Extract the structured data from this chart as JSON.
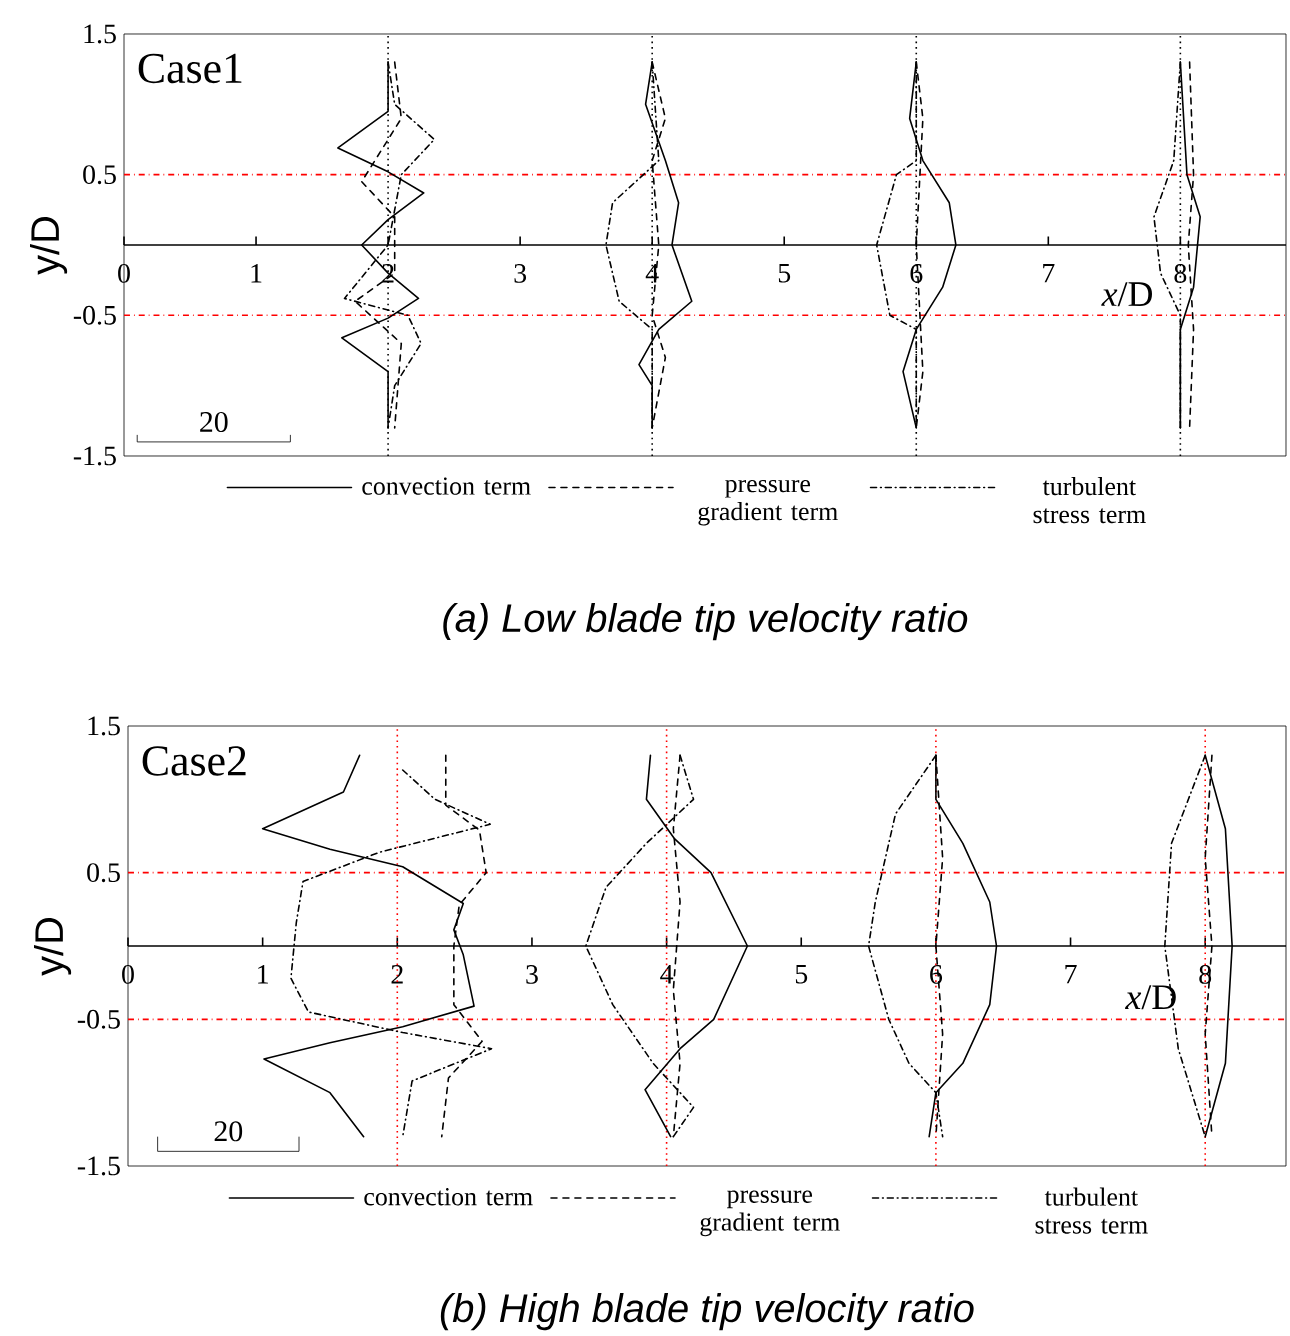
{
  "chart_data": [
    {
      "type": "line",
      "title": "(a) Low blade tip velocity ratio",
      "xlabel": "*x*/D",
      "ylabel": "y/D",
      "annotations": [
        "Case1",
        "20"
      ],
      "xlim": [
        0,
        8.8
      ],
      "ylim": [
        -1.5,
        1.5
      ],
      "xticks": [
        0,
        1,
        2,
        3,
        4,
        5,
        6,
        7,
        8
      ],
      "yticks": [
        -1.5,
        -0.5,
        0.5,
        1.5
      ],
      "legend": "bottom",
      "ref_lines": [
        {
          "axis": "y",
          "value": 0.5,
          "color": "#ff0000",
          "line_style": "dashdot"
        },
        {
          "axis": "y",
          "value": -0.5,
          "color": "#ff0000",
          "line_style": "dashdot"
        },
        {
          "axis": "x",
          "value": 2,
          "color": "#000000",
          "line_style": "dotted"
        },
        {
          "axis": "x",
          "value": 4,
          "color": "#000000",
          "line_style": "dotted"
        },
        {
          "axis": "x",
          "value": 6,
          "color": "#000000",
          "line_style": "dotted"
        },
        {
          "axis": "x",
          "value": 8,
          "color": "#000000",
          "line_style": "dotted"
        }
      ],
      "series": [
        {
          "name": "convection term",
          "color": "#000000",
          "line_style": "solid",
          "x": [
            2.0,
            2.0,
            1.62,
            2.0,
            2.27,
            2.0,
            1.8,
            2.0,
            2.23,
            2.0,
            1.65,
            2.0,
            2.0,
            null,
            4.0,
            3.95,
            4.1,
            4.2,
            4.15,
            4.3,
            4.05,
            3.9,
            4.0,
            4.0,
            null,
            6.0,
            5.95,
            6.05,
            6.25,
            6.3,
            6.2,
            6.0,
            5.9,
            6.0,
            null,
            8.0,
            8.05,
            8.15,
            8.1,
            8.0,
            8.0
          ],
          "values": [
            1.3,
            0.95,
            0.69,
            0.52,
            0.37,
            0.18,
            0.0,
            -0.2,
            -0.38,
            -0.52,
            -0.66,
            -0.9,
            -1.3,
            null,
            1.3,
            1.0,
            0.6,
            0.3,
            0.0,
            -0.4,
            -0.6,
            -0.85,
            -1.0,
            -1.3,
            null,
            1.3,
            0.9,
            0.6,
            0.3,
            0.0,
            -0.3,
            -0.6,
            -0.9,
            -1.3,
            null,
            1.3,
            0.5,
            0.2,
            -0.3,
            -0.6,
            -1.3
          ]
        },
        {
          "name": "pressure gradient term",
          "color": "#000000",
          "line_style": "dashed",
          "x": [
            2.05,
            2.1,
            1.8,
            2.05,
            2.05,
            1.75,
            2.1,
            2.05,
            null,
            4.0,
            4.1,
            4.0,
            4.05,
            4.0,
            4.1,
            4.0,
            null,
            6.0,
            6.05,
            6.0,
            6.05,
            6.0,
            null,
            8.07,
            8.1,
            8.06,
            8.1,
            8.07
          ],
          "values": [
            1.3,
            0.9,
            0.45,
            0.2,
            -0.2,
            -0.4,
            -0.7,
            -1.3,
            null,
            1.3,
            0.9,
            0.6,
            0.0,
            -0.5,
            -0.8,
            -1.3,
            null,
            1.3,
            0.9,
            0.0,
            -0.9,
            -1.3,
            null,
            1.3,
            0.5,
            0.0,
            -0.6,
            -1.3
          ]
        },
        {
          "name": "turbulent stress term",
          "color": "#000000",
          "line_style": "dashdot",
          "x": [
            2.0,
            2.05,
            2.35,
            2.1,
            2.0,
            1.67,
            2.15,
            2.25,
            2.05,
            2.0,
            null,
            4.0,
            4.05,
            3.7,
            3.65,
            3.75,
            4.0,
            4.0,
            null,
            6.0,
            6.0,
            5.85,
            5.7,
            5.8,
            6.0,
            6.0,
            null,
            8.0,
            7.95,
            7.8,
            7.85,
            8.0,
            8.0
          ],
          "values": [
            1.3,
            1.0,
            0.75,
            0.5,
            0.0,
            -0.38,
            -0.5,
            -0.7,
            -1.0,
            -1.3,
            null,
            1.3,
            0.6,
            0.3,
            0.0,
            -0.4,
            -0.6,
            -1.3,
            null,
            1.3,
            0.6,
            0.5,
            0.0,
            -0.5,
            -0.6,
            -1.3,
            null,
            1.3,
            0.6,
            0.2,
            -0.2,
            -0.5,
            -1.3
          ]
        }
      ]
    },
    {
      "type": "line",
      "title": "(b) High blade tip velocity ratio",
      "xlabel": "*x*/D",
      "ylabel": "y/D",
      "annotations": [
        "Case2",
        "20"
      ],
      "xlim": [
        0,
        8.6
      ],
      "ylim": [
        -1.5,
        1.5
      ],
      "xticks": [
        0,
        1,
        2,
        3,
        4,
        5,
        6,
        7,
        8
      ],
      "yticks": [
        -1.5,
        -0.5,
        0.5,
        1.5
      ],
      "legend": "bottom",
      "ref_lines": [
        {
          "axis": "y",
          "value": 0.5,
          "color": "#ff0000",
          "line_style": "dashdot"
        },
        {
          "axis": "y",
          "value": -0.5,
          "color": "#ff0000",
          "line_style": "dashdot"
        },
        {
          "axis": "x",
          "value": 2,
          "color": "#ff0000",
          "line_style": "dotted"
        },
        {
          "axis": "x",
          "value": 4,
          "color": "#ff0000",
          "line_style": "dotted"
        },
        {
          "axis": "x",
          "value": 6,
          "color": "#ff0000",
          "line_style": "dotted"
        },
        {
          "axis": "x",
          "value": 8,
          "color": "#ff0000",
          "line_style": "dotted"
        }
      ],
      "series": [
        {
          "name": "convection term",
          "color": "#000000",
          "line_style": "solid",
          "x": [
            1.72,
            1.6,
            1.0,
            1.5,
            2.04,
            2.49,
            2.42,
            2.49,
            2.57,
            2.04,
            1.5,
            1.01,
            1.5,
            1.75,
            null,
            3.88,
            3.85,
            4.06,
            4.33,
            4.6,
            4.35,
            4.1,
            3.84,
            4.03,
            null,
            6.0,
            6.0,
            6.2,
            6.4,
            6.45,
            6.4,
            6.2,
            6.0,
            5.95,
            null,
            8.0,
            8.15,
            8.2,
            8.15,
            8.0
          ],
          "values": [
            1.3,
            1.05,
            0.8,
            0.66,
            0.54,
            0.29,
            0.11,
            -0.06,
            -0.41,
            -0.55,
            -0.66,
            -0.77,
            -1.0,
            -1.3,
            null,
            1.3,
            1.0,
            0.73,
            0.5,
            0.0,
            -0.5,
            -0.7,
            -0.98,
            -1.3,
            null,
            1.3,
            1.0,
            0.7,
            0.3,
            0.0,
            -0.4,
            -0.8,
            -1.0,
            -1.3,
            null,
            1.3,
            0.8,
            0.0,
            -0.8,
            -1.3
          ]
        },
        {
          "name": "pressure gradient term",
          "color": "#000000",
          "line_style": "dashed",
          "x": [
            2.36,
            2.36,
            2.61,
            2.66,
            2.46,
            2.42,
            2.42,
            2.63,
            2.38,
            2.33,
            null,
            4.1,
            4.05,
            4.1,
            4.05,
            4.1,
            4.05,
            null,
            6.0,
            6.05,
            6.0,
            6.05,
            6.0,
            null,
            8.05,
            8.0,
            8.05,
            8.0,
            8.05
          ],
          "values": [
            1.3,
            0.96,
            0.79,
            0.5,
            0.28,
            0.0,
            -0.4,
            -0.65,
            -0.9,
            -1.3,
            null,
            1.3,
            0.8,
            0.3,
            -0.3,
            -0.8,
            -1.3,
            null,
            1.3,
            0.6,
            0.0,
            -0.6,
            -1.3,
            null,
            1.3,
            0.6,
            0.0,
            -0.6,
            -1.3
          ]
        },
        {
          "name": "turbulent stress term",
          "color": "#000000",
          "line_style": "dashdot",
          "x": [
            2.04,
            2.28,
            2.69,
            1.87,
            1.3,
            1.25,
            1.21,
            1.34,
            2.04,
            2.7,
            2.11,
            2.04,
            null,
            4.1,
            4.2,
            3.85,
            3.55,
            3.4,
            3.6,
            3.9,
            4.2,
            4.05,
            null,
            6.0,
            5.7,
            5.55,
            5.5,
            5.65,
            5.8,
            6.0,
            6.05,
            null,
            8.0,
            7.75,
            7.7,
            7.8,
            8.0
          ],
          "values": [
            1.2,
            1.0,
            0.83,
            0.64,
            0.44,
            0.16,
            -0.22,
            -0.45,
            -0.59,
            -0.7,
            -0.92,
            -1.3,
            null,
            1.3,
            1.0,
            0.7,
            0.4,
            0.0,
            -0.4,
            -0.8,
            -1.1,
            -1.3,
            null,
            1.3,
            0.9,
            0.3,
            0.0,
            -0.5,
            -0.8,
            -1.0,
            -1.3,
            null,
            1.3,
            0.7,
            0.0,
            -0.7,
            -1.3
          ]
        }
      ]
    }
  ]
}
